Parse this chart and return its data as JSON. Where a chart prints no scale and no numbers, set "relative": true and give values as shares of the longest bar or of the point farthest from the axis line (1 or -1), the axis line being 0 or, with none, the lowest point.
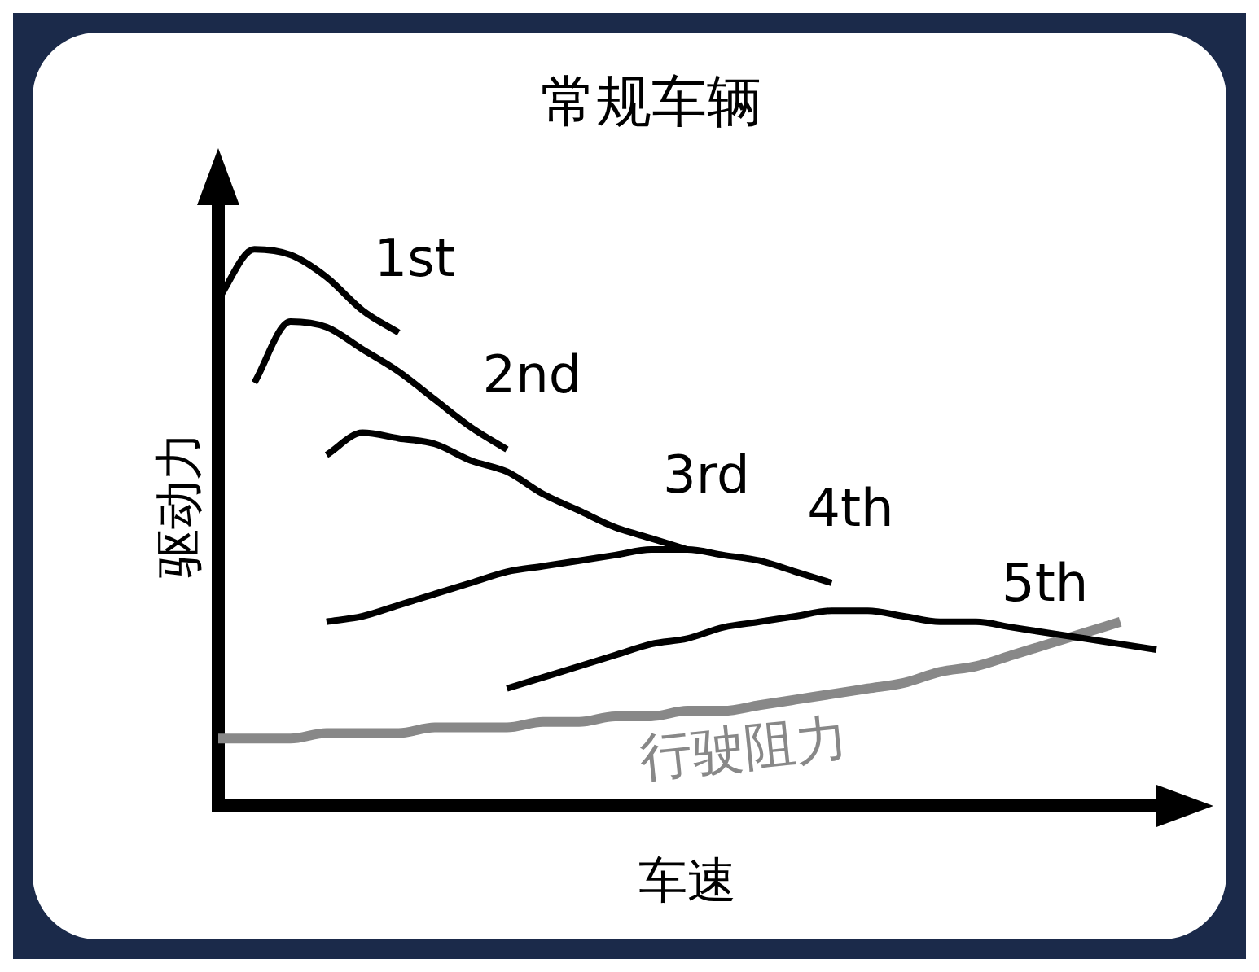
{
  "chart_data": {
    "type": "line",
    "title": "常规车辆",
    "xlabel": "车速",
    "ylabel": "驱动力",
    "relative": true,
    "grid": false,
    "legend": false,
    "marker": "none",
    "line_style": "solid",
    "categories": [
      null,
      null,
      null,
      null,
      null,
      null,
      null,
      null,
      null,
      null,
      null,
      null,
      null,
      null,
      null,
      null,
      null,
      null,
      null,
      null,
      null,
      null,
      null,
      null,
      null,
      null,
      null
    ],
    "series": [
      {
        "name": "1st",
        "color": "#000000",
        "values": [
          0.91,
          1.0,
          0.99,
          0.95,
          0.89,
          0.85,
          null,
          null,
          null,
          null,
          null,
          null,
          null,
          null,
          null,
          null,
          null,
          null,
          null,
          null,
          null,
          null,
          null,
          null,
          null,
          null,
          null
        ]
      },
      {
        "name": "2nd",
        "color": "#000000",
        "values": [
          null,
          0.76,
          0.87,
          0.86,
          0.82,
          0.78,
          0.73,
          0.68,
          0.64,
          null,
          null,
          null,
          null,
          null,
          null,
          null,
          null,
          null,
          null,
          null,
          null,
          null,
          null,
          null,
          null,
          null,
          null
        ]
      },
      {
        "name": "3rd",
        "color": "#000000",
        "values": [
          null,
          null,
          null,
          0.63,
          0.67,
          0.66,
          0.65,
          0.62,
          0.6,
          0.56,
          0.53,
          0.5,
          0.48,
          0.46,
          null,
          null,
          null,
          null,
          null,
          null,
          null,
          null,
          null,
          null,
          null,
          null,
          null
        ]
      },
      {
        "name": "4th",
        "color": "#000000",
        "values": [
          null,
          null,
          null,
          0.33,
          0.34,
          0.36,
          0.38,
          0.4,
          0.42,
          0.43,
          0.44,
          0.45,
          0.46,
          0.46,
          0.45,
          0.44,
          0.42,
          0.4,
          null,
          null,
          null,
          null,
          null,
          null,
          null,
          null,
          null
        ]
      },
      {
        "name": "5th",
        "color": "#000000",
        "values": [
          null,
          null,
          null,
          null,
          null,
          null,
          null,
          null,
          0.21,
          0.23,
          0.25,
          0.27,
          0.29,
          0.3,
          0.32,
          0.33,
          0.34,
          0.35,
          0.35,
          0.34,
          0.33,
          0.33,
          0.32,
          0.31,
          0.3,
          0.29,
          0.28
        ]
      },
      {
        "name": "行驶阻力",
        "color": "#888888",
        "values": [
          0.12,
          0.12,
          0.12,
          0.13,
          0.13,
          0.13,
          0.14,
          0.14,
          0.14,
          0.15,
          0.15,
          0.16,
          0.16,
          0.17,
          0.17,
          0.18,
          0.19,
          0.2,
          0.21,
          0.22,
          0.24,
          0.25,
          0.27,
          0.29,
          0.31,
          0.33,
          null
        ]
      }
    ]
  }
}
